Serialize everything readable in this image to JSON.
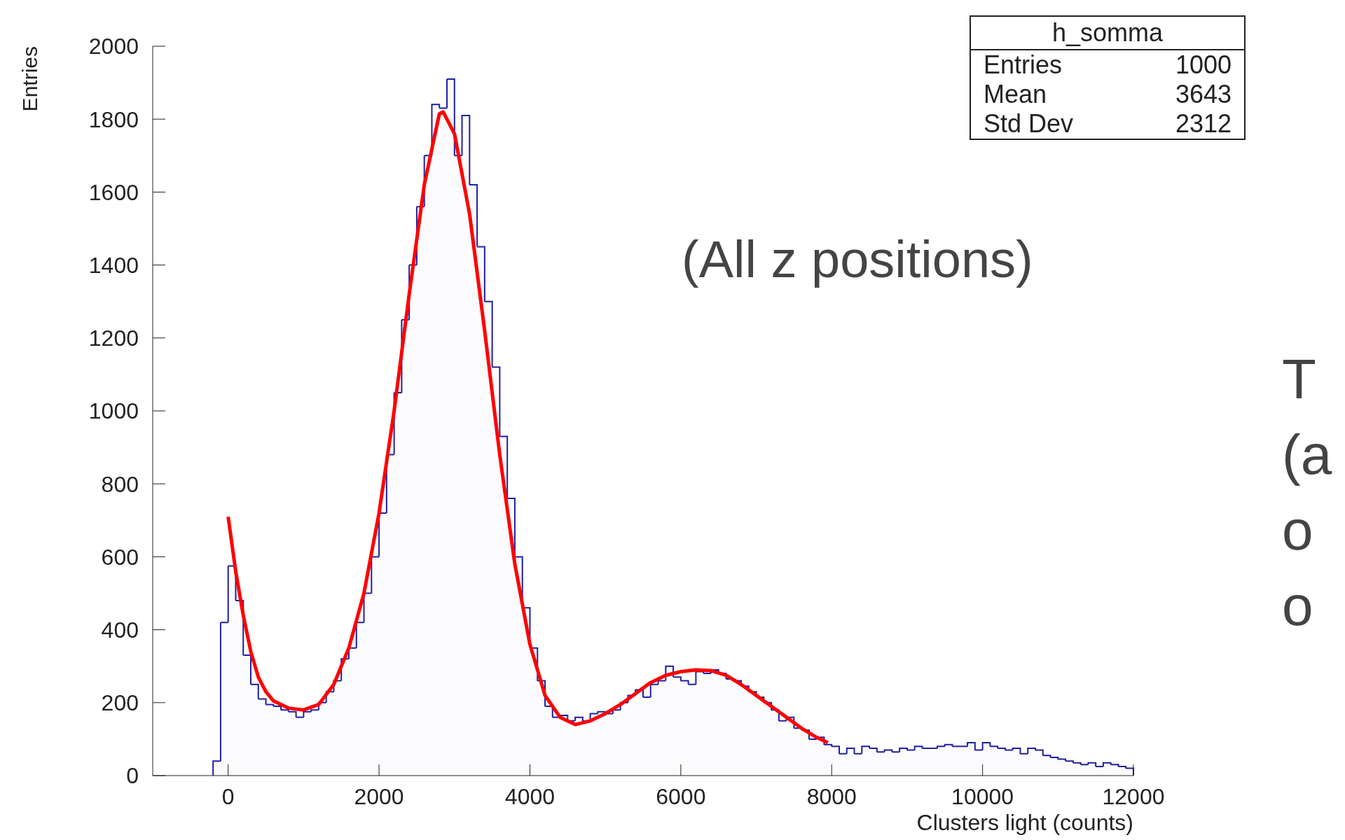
{
  "chart_data": {
    "type": "histogram",
    "xlabel": "Clusters light (counts)",
    "ylabel": "Entries",
    "bins": [
      -200,
      -100,
      0,
      100,
      200,
      300,
      400,
      500,
      600,
      700,
      800,
      900,
      1000,
      1100,
      1200,
      1300,
      1400,
      1500,
      1600,
      1700,
      1800,
      1900,
      2000,
      2100,
      2200,
      2300,
      2400,
      2500,
      2600,
      2700,
      2800,
      2900,
      3000,
      3100,
      3200,
      3300,
      3400,
      3500,
      3600,
      3700,
      3800,
      3900,
      4000,
      4100,
      4200,
      4300,
      4400,
      4500,
      4600,
      4700,
      4800,
      4900,
      5000,
      5100,
      5200,
      5300,
      5400,
      5500,
      5600,
      5700,
      5800,
      5900,
      6000,
      6100,
      6200,
      6300,
      6400,
      6500,
      6600,
      6700,
      6800,
      6900,
      7000,
      7100,
      7200,
      7300,
      7400,
      7500,
      7600,
      7700,
      7800,
      7900,
      8000,
      8100,
      8200,
      8300,
      8400,
      8500,
      8600,
      8700,
      8800,
      8900,
      9000,
      9100,
      9200,
      9300,
      9400,
      9500,
      9600,
      9700,
      9800,
      9900,
      10000,
      10100,
      10200,
      10300,
      10400,
      10500,
      10600,
      10700,
      10800,
      10900,
      11000,
      11100,
      11200,
      11300,
      11400,
      11500,
      11600,
      11700,
      11800,
      11900,
      12000
    ],
    "values": [
      40,
      420,
      575,
      480,
      330,
      250,
      210,
      195,
      190,
      180,
      175,
      160,
      175,
      180,
      200,
      230,
      260,
      320,
      350,
      420,
      500,
      600,
      720,
      880,
      1050,
      1250,
      1400,
      1560,
      1700,
      1840,
      1830,
      1910,
      1700,
      1810,
      1620,
      1450,
      1300,
      1120,
      930,
      760,
      600,
      460,
      350,
      260,
      190,
      160,
      165,
      150,
      160,
      150,
      170,
      175,
      170,
      180,
      200,
      220,
      235,
      215,
      250,
      260,
      300,
      270,
      260,
      250,
      285,
      280,
      290,
      280,
      265,
      260,
      245,
      230,
      215,
      200,
      180,
      150,
      160,
      130,
      125,
      100,
      105,
      85,
      80,
      60,
      75,
      60,
      80,
      75,
      65,
      70,
      65,
      75,
      70,
      80,
      75,
      75,
      80,
      85,
      80,
      80,
      90,
      70,
      90,
      80,
      75,
      70,
      75,
      60,
      75,
      70,
      55,
      50,
      45,
      40,
      35,
      30,
      35,
      25,
      35,
      30,
      25,
      20
    ],
    "color": "#2020a0",
    "series": [
      {
        "type": "line",
        "color": "#ff0000",
        "x": [
          0,
          100,
          200,
          300,
          400,
          500,
          600,
          800,
          1000,
          1200,
          1400,
          1600,
          1800,
          2000,
          2200,
          2400,
          2600,
          2800,
          2850,
          3000,
          3200,
          3400,
          3600,
          3800,
          4000,
          4200,
          4400,
          4600,
          4800,
          5000,
          5200,
          5400,
          5600,
          5800,
          6000,
          6200,
          6400,
          6600,
          6800,
          7000,
          7200,
          7400,
          7600,
          7800,
          7950
        ],
        "values": [
          710,
          560,
          440,
          340,
          270,
          230,
          205,
          185,
          180,
          195,
          250,
          350,
          500,
          720,
          1000,
          1320,
          1620,
          1815,
          1820,
          1760,
          1540,
          1220,
          880,
          580,
          360,
          220,
          160,
          140,
          150,
          170,
          195,
          225,
          255,
          275,
          285,
          290,
          288,
          275,
          250,
          220,
          190,
          160,
          130,
          105,
          90
        ]
      }
    ],
    "xlim": [
      -1000,
      12000
    ],
    "xticks": [
      0,
      2000,
      4000,
      6000,
      8000,
      10000,
      12000
    ],
    "ylim": [
      0,
      2000
    ],
    "yticks": [
      0,
      200,
      400,
      600,
      800,
      1000,
      1200,
      1400,
      1600,
      1800,
      2000
    ],
    "grid": false,
    "annotations": [
      "h_somma",
      "Entries",
      "1000",
      "Mean",
      "3643",
      "Std Dev",
      "2312",
      "(All z positions)",
      "T",
      "(a",
      "o",
      "o"
    ]
  }
}
